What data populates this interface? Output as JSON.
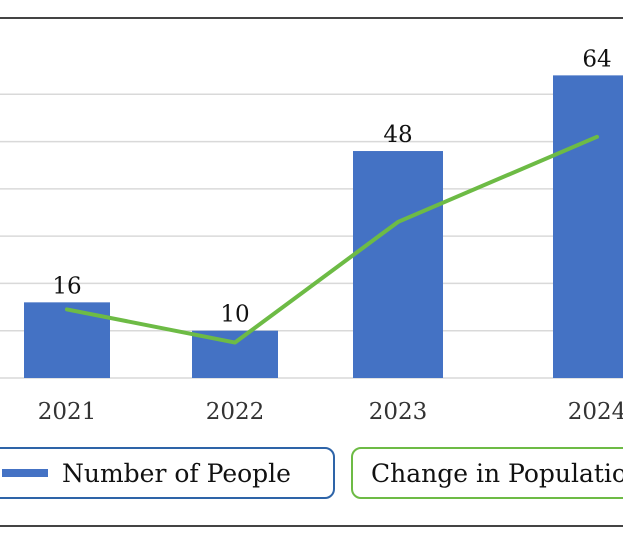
{
  "colors": {
    "bar": "#4472C4",
    "line": "#6DBB45",
    "grid": "#D9D9D9",
    "frame": "#444444"
  },
  "chart_data": {
    "type": "bar",
    "categories": [
      "2021",
      "2022",
      "2023",
      "2024"
    ],
    "series": [
      {
        "name": "Number of People",
        "type": "bar",
        "values": [
          16,
          10,
          48,
          64
        ]
      },
      {
        "name": "Change in Population",
        "type": "line",
        "values": [
          14.5,
          7.5,
          33,
          51
        ]
      }
    ],
    "data_labels": [
      "16",
      "10",
      "48",
      "64"
    ],
    "ylim": [
      0,
      70
    ],
    "grid": true,
    "legend": "bottom"
  }
}
